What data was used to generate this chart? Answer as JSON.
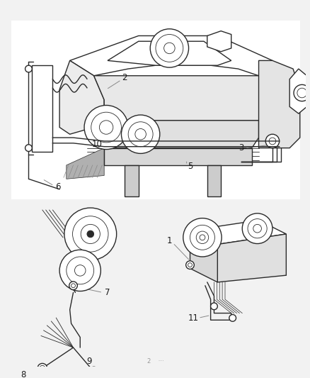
{
  "bg_color": "#f2f2f2",
  "line_color": "#2a2a2a",
  "label_color": "#1a1a1a",
  "leader_color": "#888888",
  "figsize": [
    4.38,
    5.33
  ],
  "dpi": 100,
  "lw_main": 1.0,
  "lw_thin": 0.6,
  "fs_label": 8.5,
  "footer_text": "2    ···"
}
